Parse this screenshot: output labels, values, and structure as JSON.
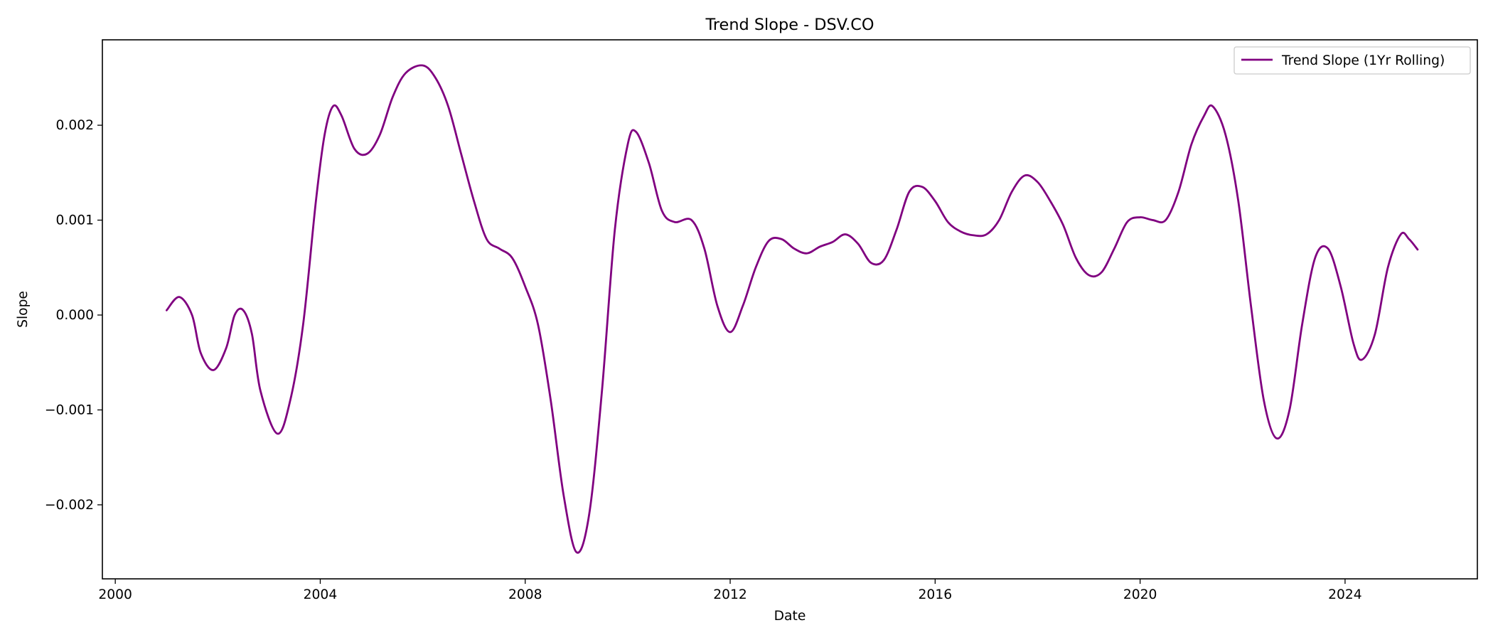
{
  "chart_data": {
    "type": "line",
    "title": "Trend Slope - DSV.CO",
    "xlabel": "Date",
    "ylabel": "Slope",
    "xlim": [
      "1999-10-01",
      "2026-08-01"
    ],
    "ylim": [
      -0.00278,
      0.0029
    ],
    "x_ticks": [
      {
        "value": "2000-01-01",
        "label": "2000"
      },
      {
        "value": "2004-01-01",
        "label": "2004"
      },
      {
        "value": "2008-01-01",
        "label": "2008"
      },
      {
        "value": "2012-01-01",
        "label": "2012"
      },
      {
        "value": "2016-01-01",
        "label": "2016"
      },
      {
        "value": "2020-01-01",
        "label": "2020"
      },
      {
        "value": "2024-01-01",
        "label": "2024"
      }
    ],
    "y_ticks": [
      {
        "value": -0.002,
        "label": "−0.002"
      },
      {
        "value": -0.001,
        "label": "−0.001"
      },
      {
        "value": 0.0,
        "label": "0.000"
      },
      {
        "value": 0.001,
        "label": "0.001"
      },
      {
        "value": 0.002,
        "label": "0.002"
      }
    ],
    "grid": false,
    "legend": {
      "position": "top-right",
      "entries": [
        "Trend Slope (1Yr Rolling)"
      ]
    },
    "series": [
      {
        "name": "Trend Slope (1Yr Rolling)",
        "color": "#800080",
        "points": [
          [
            "2001-01-01",
            5e-05
          ],
          [
            "2001-04-01",
            0.00019
          ],
          [
            "2001-07-01",
            0.0
          ],
          [
            "2001-09-01",
            -0.0004
          ],
          [
            "2001-12-01",
            -0.00058
          ],
          [
            "2002-03-01",
            -0.00035
          ],
          [
            "2002-05-01",
            0.0
          ],
          [
            "2002-07-01",
            5e-05
          ],
          [
            "2002-09-01",
            -0.0002
          ],
          [
            "2002-11-01",
            -0.0008
          ],
          [
            "2003-03-01",
            -0.00125
          ],
          [
            "2003-06-01",
            -0.0009
          ],
          [
            "2003-09-01",
            -0.0001
          ],
          [
            "2003-12-01",
            0.0012
          ],
          [
            "2004-02-01",
            0.0019
          ],
          [
            "2004-04-01",
            0.0022
          ],
          [
            "2004-06-01",
            0.0021
          ],
          [
            "2004-09-01",
            0.00175
          ],
          [
            "2004-12-01",
            0.0017
          ],
          [
            "2005-03-01",
            0.0019
          ],
          [
            "2005-06-01",
            0.0023
          ],
          [
            "2005-09-01",
            0.00255
          ],
          [
            "2006-01-01",
            0.00263
          ],
          [
            "2006-04-01",
            0.0025
          ],
          [
            "2006-07-01",
            0.0022
          ],
          [
            "2006-10-01",
            0.0017
          ],
          [
            "2007-01-01",
            0.0012
          ],
          [
            "2007-04-01",
            0.0008
          ],
          [
            "2007-07-01",
            0.0007
          ],
          [
            "2007-10-01",
            0.0006
          ],
          [
            "2008-01-01",
            0.0003
          ],
          [
            "2008-04-01",
            -0.0001
          ],
          [
            "2008-07-01",
            -0.0009
          ],
          [
            "2008-10-01",
            -0.0019
          ],
          [
            "2009-01-01",
            -0.0025
          ],
          [
            "2009-04-01",
            -0.0021
          ],
          [
            "2009-07-01",
            -0.0008
          ],
          [
            "2009-10-01",
            0.0009
          ],
          [
            "2010-01-01",
            0.0018
          ],
          [
            "2010-03-01",
            0.00193
          ],
          [
            "2010-06-01",
            0.0016
          ],
          [
            "2010-09-01",
            0.0011
          ],
          [
            "2010-12-01",
            0.00098
          ],
          [
            "2011-04-01",
            0.001
          ],
          [
            "2011-07-01",
            0.0007
          ],
          [
            "2011-10-01",
            0.0001
          ],
          [
            "2012-01-01",
            -0.00018
          ],
          [
            "2012-04-01",
            0.0001
          ],
          [
            "2012-07-01",
            0.0005
          ],
          [
            "2012-10-01",
            0.00078
          ],
          [
            "2013-01-01",
            0.0008
          ],
          [
            "2013-04-01",
            0.0007
          ],
          [
            "2013-07-01",
            0.00065
          ],
          [
            "2013-10-01",
            0.00072
          ],
          [
            "2014-01-01",
            0.00077
          ],
          [
            "2014-04-01",
            0.00085
          ],
          [
            "2014-07-01",
            0.00075
          ],
          [
            "2014-10-01",
            0.00055
          ],
          [
            "2015-01-01",
            0.00058
          ],
          [
            "2015-04-01",
            0.0009
          ],
          [
            "2015-07-01",
            0.0013
          ],
          [
            "2015-10-01",
            0.00135
          ],
          [
            "2016-01-01",
            0.0012
          ],
          [
            "2016-04-01",
            0.00098
          ],
          [
            "2016-07-01",
            0.00088
          ],
          [
            "2016-10-01",
            0.00084
          ],
          [
            "2017-01-01",
            0.00085
          ],
          [
            "2017-04-01",
            0.001
          ],
          [
            "2017-07-01",
            0.0013
          ],
          [
            "2017-10-01",
            0.00147
          ],
          [
            "2018-01-01",
            0.0014
          ],
          [
            "2018-04-01",
            0.0012
          ],
          [
            "2018-07-01",
            0.00095
          ],
          [
            "2018-10-01",
            0.0006
          ],
          [
            "2019-01-01",
            0.00042
          ],
          [
            "2019-04-01",
            0.00045
          ],
          [
            "2019-07-01",
            0.0007
          ],
          [
            "2019-10-01",
            0.00098
          ],
          [
            "2020-01-01",
            0.00103
          ],
          [
            "2020-04-01",
            0.001
          ],
          [
            "2020-07-01",
            0.001
          ],
          [
            "2020-10-01",
            0.0013
          ],
          [
            "2021-01-01",
            0.0018
          ],
          [
            "2021-04-01",
            0.0021
          ],
          [
            "2021-06-01",
            0.0022
          ],
          [
            "2021-09-01",
            0.0019
          ],
          [
            "2021-12-01",
            0.0012
          ],
          [
            "2022-03-01",
            0.0001
          ],
          [
            "2022-06-01",
            -0.0009
          ],
          [
            "2022-09-01",
            -0.0013
          ],
          [
            "2022-12-01",
            -0.001
          ],
          [
            "2023-03-01",
            -0.0001
          ],
          [
            "2023-06-01",
            0.0006
          ],
          [
            "2023-09-01",
            0.0007
          ],
          [
            "2023-12-01",
            0.0003
          ],
          [
            "2024-03-01",
            -0.0003
          ],
          [
            "2024-05-01",
            -0.00047
          ],
          [
            "2024-08-01",
            -0.0002
          ],
          [
            "2024-11-01",
            0.0005
          ],
          [
            "2025-02-01",
            0.00085
          ],
          [
            "2025-04-01",
            0.0008
          ],
          [
            "2025-06-01",
            0.00069
          ]
        ]
      }
    ]
  }
}
